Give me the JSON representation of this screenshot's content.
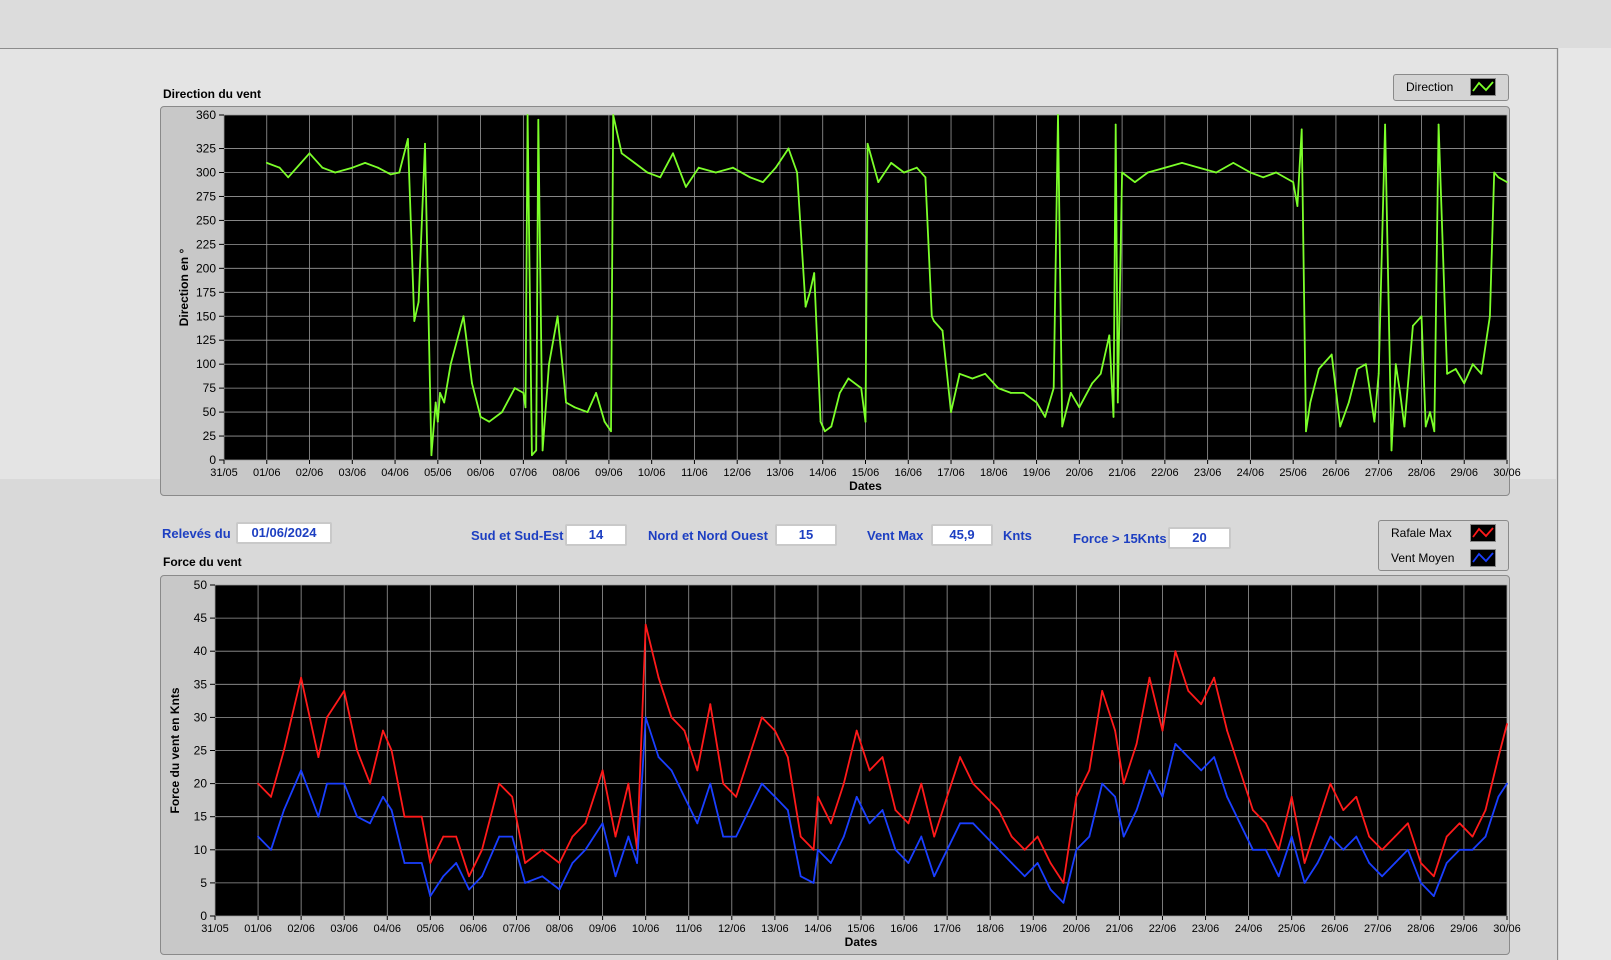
{
  "direction_chart": {
    "title": "Direction du vent",
    "legend_label": "Direction",
    "line_color": "#7cff2a"
  },
  "force_chart": {
    "title": "Force du vent",
    "legend": [
      {
        "label": "Rafale Max",
        "color": "#ff1a1a"
      },
      {
        "label": "Vent Moyen",
        "color": "#1a3fff"
      }
    ]
  },
  "controls": {
    "releves_label": "Relevés du",
    "releves_value": "01/06/2024",
    "sud_label": "Sud et Sud-Est",
    "sud_value": "14",
    "nord_label": "Nord et Nord Ouest",
    "nord_value": "15",
    "ventmax_label": "Vent Max",
    "ventmax_value": "45,9",
    "ventmax_unit": "Knts",
    "force15_label": "Force > 15Knts",
    "force15_value": "20"
  },
  "chart_data": [
    {
      "type": "line",
      "xlabel": "Dates",
      "ylabel": "Direction en °",
      "ylim": [
        0,
        360
      ],
      "yticks": [
        0,
        25,
        50,
        75,
        100,
        125,
        150,
        175,
        200,
        225,
        250,
        275,
        300,
        325,
        360
      ],
      "xtick_labels": [
        "31/05",
        "01/06",
        "02/06",
        "03/06",
        "04/06",
        "05/06",
        "06/06",
        "07/06",
        "08/06",
        "09/06",
        "10/06",
        "11/06",
        "12/06",
        "13/06",
        "14/06",
        "15/06",
        "16/06",
        "17/06",
        "18/06",
        "19/06",
        "20/06",
        "21/06",
        "22/06",
        "23/06",
        "24/06",
        "25/06",
        "26/06",
        "27/06",
        "28/06",
        "29/06",
        "30/06"
      ],
      "series": [
        {
          "name": "Direction",
          "x": [
            1.0,
            1.3,
            1.5,
            1.8,
            2.0,
            2.3,
            2.6,
            3.0,
            3.3,
            3.6,
            3.9,
            4.1,
            4.3,
            4.45,
            4.55,
            4.7,
            4.85,
            4.95,
            5.0,
            5.05,
            5.15,
            5.3,
            5.6,
            5.8,
            6.0,
            6.2,
            6.5,
            6.8,
            7.0,
            7.05,
            7.1,
            7.2,
            7.3,
            7.35,
            7.45,
            7.6,
            7.8,
            8.0,
            8.2,
            8.5,
            8.7,
            8.9,
            9.05,
            9.1,
            9.3,
            9.6,
            9.9,
            10.2,
            10.5,
            10.8,
            11.1,
            11.5,
            11.9,
            12.3,
            12.6,
            12.9,
            13.2,
            13.4,
            13.6,
            13.7,
            13.8,
            13.95,
            14.05,
            14.2,
            14.4,
            14.6,
            14.9,
            15.0,
            15.05,
            15.3,
            15.6,
            15.9,
            16.2,
            16.4,
            16.55,
            16.6,
            16.8,
            17.0,
            17.2,
            17.5,
            17.8,
            18.1,
            18.4,
            18.7,
            19.0,
            19.2,
            19.4,
            19.5,
            19.6,
            19.8,
            20.0,
            20.3,
            20.5,
            20.7,
            20.8,
            20.85,
            20.9,
            21.0,
            21.3,
            21.6,
            22.0,
            22.4,
            22.8,
            23.2,
            23.6,
            24.0,
            24.3,
            24.6,
            25.0,
            25.1,
            25.2,
            25.3,
            25.4,
            25.6,
            25.9,
            26.1,
            26.3,
            26.5,
            26.7,
            26.9,
            27.0,
            27.15,
            27.3,
            27.4,
            27.5,
            27.6,
            27.8,
            28.0,
            28.1,
            28.2,
            28.3,
            28.4,
            28.6,
            28.8,
            29.0,
            29.2,
            29.4,
            29.6,
            29.7,
            29.8,
            30.0
          ],
          "y": [
            310,
            305,
            295,
            310,
            320,
            305,
            300,
            305,
            310,
            305,
            298,
            300,
            335,
            145,
            165,
            330,
            5,
            60,
            40,
            70,
            60,
            100,
            150,
            80,
            45,
            40,
            50,
            75,
            70,
            55,
            360,
            5,
            10,
            355,
            10,
            100,
            150,
            60,
            55,
            50,
            70,
            40,
            30,
            360,
            320,
            310,
            300,
            295,
            320,
            285,
            305,
            300,
            305,
            295,
            290,
            305,
            325,
            300,
            160,
            175,
            195,
            40,
            30,
            35,
            70,
            85,
            75,
            40,
            330,
            290,
            310,
            300,
            305,
            295,
            150,
            145,
            135,
            50,
            90,
            85,
            90,
            75,
            70,
            70,
            60,
            45,
            75,
            360,
            35,
            70,
            55,
            80,
            90,
            130,
            45,
            350,
            60,
            300,
            290,
            300,
            305,
            310,
            305,
            300,
            310,
            300,
            295,
            300,
            290,
            265,
            345,
            30,
            60,
            95,
            110,
            35,
            60,
            95,
            100,
            40,
            90,
            350,
            10,
            100,
            70,
            35,
            140,
            150,
            35,
            50,
            30,
            350,
            90,
            95,
            80,
            100,
            90,
            150,
            300,
            295,
            290
          ]
        }
      ]
    },
    {
      "type": "line",
      "xlabel": "Dates",
      "ylabel": "Force du vent en Knts",
      "ylim": [
        0,
        50
      ],
      "yticks": [
        0,
        5,
        10,
        15,
        20,
        25,
        30,
        35,
        40,
        45,
        50
      ],
      "xtick_labels": [
        "31/05",
        "01/06",
        "02/06",
        "03/06",
        "04/06",
        "05/06",
        "06/06",
        "07/06",
        "08/06",
        "09/06",
        "10/06",
        "11/06",
        "12/06",
        "13/06",
        "14/06",
        "15/06",
        "16/06",
        "17/06",
        "18/06",
        "19/06",
        "20/06",
        "21/06",
        "22/06",
        "23/06",
        "24/06",
        "25/06",
        "26/06",
        "27/06",
        "28/06",
        "29/06",
        "30/06"
      ],
      "series": [
        {
          "name": "Rafale Max",
          "x": [
            1.0,
            1.3,
            1.6,
            2.0,
            2.4,
            2.6,
            3.0,
            3.3,
            3.6,
            3.9,
            4.1,
            4.4,
            4.8,
            5.0,
            5.3,
            5.6,
            5.9,
            6.2,
            6.6,
            6.9,
            7.2,
            7.6,
            8.0,
            8.3,
            8.6,
            9.0,
            9.3,
            9.6,
            9.8,
            10.0,
            10.3,
            10.6,
            10.9,
            11.2,
            11.5,
            11.8,
            12.1,
            12.4,
            12.7,
            13.0,
            13.3,
            13.6,
            13.9,
            14.0,
            14.3,
            14.6,
            14.9,
            15.2,
            15.5,
            15.8,
            16.1,
            16.4,
            16.7,
            17.0,
            17.3,
            17.6,
            17.9,
            18.2,
            18.5,
            18.8,
            19.1,
            19.4,
            19.7,
            20.0,
            20.3,
            20.6,
            20.9,
            21.1,
            21.4,
            21.7,
            22.0,
            22.3,
            22.6,
            22.9,
            23.2,
            23.5,
            23.8,
            24.1,
            24.4,
            24.7,
            25.0,
            25.3,
            25.6,
            25.9,
            26.2,
            26.5,
            26.8,
            27.1,
            27.4,
            27.7,
            28.0,
            28.3,
            28.6,
            28.9,
            29.2,
            29.5,
            29.8,
            30.0
          ],
          "y": [
            20,
            18,
            25,
            36,
            24,
            30,
            34,
            25,
            20,
            28,
            25,
            15,
            15,
            8,
            12,
            12,
            6,
            10,
            20,
            18,
            8,
            10,
            8,
            12,
            14,
            22,
            12,
            20,
            10,
            44,
            36,
            30,
            28,
            22,
            32,
            20,
            18,
            24,
            30,
            28,
            24,
            12,
            10,
            18,
            14,
            20,
            28,
            22,
            24,
            16,
            14,
            20,
            12,
            18,
            24,
            20,
            18,
            16,
            12,
            10,
            12,
            8,
            5,
            18,
            22,
            34,
            28,
            20,
            26,
            36,
            28,
            40,
            34,
            32,
            36,
            28,
            22,
            16,
            14,
            10,
            18,
            8,
            14,
            20,
            16,
            18,
            12,
            10,
            12,
            14,
            8,
            6,
            12,
            14,
            12,
            16,
            24,
            29
          ]
        },
        {
          "name": "Vent Moyen",
          "x": [
            1.0,
            1.3,
            1.6,
            2.0,
            2.4,
            2.6,
            3.0,
            3.3,
            3.6,
            3.9,
            4.1,
            4.4,
            4.8,
            5.0,
            5.3,
            5.6,
            5.9,
            6.2,
            6.6,
            6.9,
            7.2,
            7.6,
            8.0,
            8.3,
            8.6,
            9.0,
            9.3,
            9.6,
            9.8,
            10.0,
            10.3,
            10.6,
            10.9,
            11.2,
            11.5,
            11.8,
            12.1,
            12.4,
            12.7,
            13.0,
            13.3,
            13.6,
            13.9,
            14.0,
            14.3,
            14.6,
            14.9,
            15.2,
            15.5,
            15.8,
            16.1,
            16.4,
            16.7,
            17.0,
            17.3,
            17.6,
            17.9,
            18.2,
            18.5,
            18.8,
            19.1,
            19.4,
            19.7,
            20.0,
            20.3,
            20.6,
            20.9,
            21.1,
            21.4,
            21.7,
            22.0,
            22.3,
            22.6,
            22.9,
            23.2,
            23.5,
            23.8,
            24.1,
            24.4,
            24.7,
            25.0,
            25.3,
            25.6,
            25.9,
            26.2,
            26.5,
            26.8,
            27.1,
            27.4,
            27.7,
            28.0,
            28.3,
            28.6,
            28.9,
            29.2,
            29.5,
            29.8,
            30.0
          ],
          "y": [
            12,
            10,
            16,
            22,
            15,
            20,
            20,
            15,
            14,
            18,
            16,
            8,
            8,
            3,
            6,
            8,
            4,
            6,
            12,
            12,
            5,
            6,
            4,
            8,
            10,
            14,
            6,
            12,
            8,
            30,
            24,
            22,
            18,
            14,
            20,
            12,
            12,
            16,
            20,
            18,
            16,
            6,
            5,
            10,
            8,
            12,
            18,
            14,
            16,
            10,
            8,
            12,
            6,
            10,
            14,
            14,
            12,
            10,
            8,
            6,
            8,
            4,
            2,
            10,
            12,
            20,
            18,
            12,
            16,
            22,
            18,
            26,
            24,
            22,
            24,
            18,
            14,
            10,
            10,
            6,
            12,
            5,
            8,
            12,
            10,
            12,
            8,
            6,
            8,
            10,
            5,
            3,
            8,
            10,
            10,
            12,
            18,
            20
          ]
        }
      ]
    }
  ]
}
